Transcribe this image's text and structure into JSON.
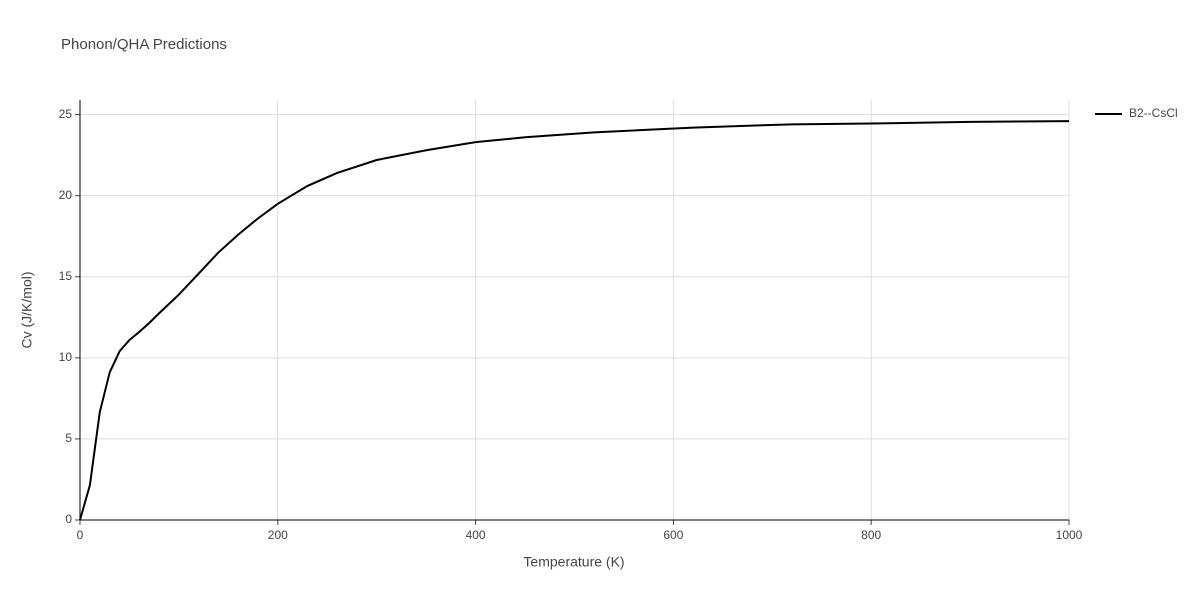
{
  "chart_data": {
    "type": "line",
    "title": "Phonon/QHA Predictions",
    "x_label": "Temperature (K)",
    "y_label": "Cv (J/K/mol)",
    "x": [
      0,
      10,
      20,
      30,
      40,
      50,
      60,
      70,
      80,
      100,
      120,
      140,
      160,
      180,
      200,
      230,
      260,
      300,
      350,
      400,
      450,
      520,
      620,
      720,
      800,
      900,
      1000
    ],
    "series": [
      {
        "name": "B2--CsCl",
        "color": "#000000",
        "values": [
          0,
          2.15,
          6.65,
          9.1,
          10.4,
          11.1,
          11.6,
          12.15,
          12.75,
          13.9,
          15.2,
          16.5,
          17.6,
          18.6,
          19.5,
          20.6,
          21.4,
          22.2,
          22.8,
          23.3,
          23.6,
          23.9,
          24.2,
          24.4,
          24.45,
          24.55,
          24.6
        ]
      }
    ],
    "xlim": [
      0,
      1000
    ],
    "xticks": [
      0,
      200,
      400,
      600,
      800,
      1000
    ],
    "ylim": [
      0,
      25.9
    ],
    "yticks": [
      0,
      5,
      10,
      15,
      20,
      25
    ],
    "grid": true,
    "legend": "right"
  }
}
